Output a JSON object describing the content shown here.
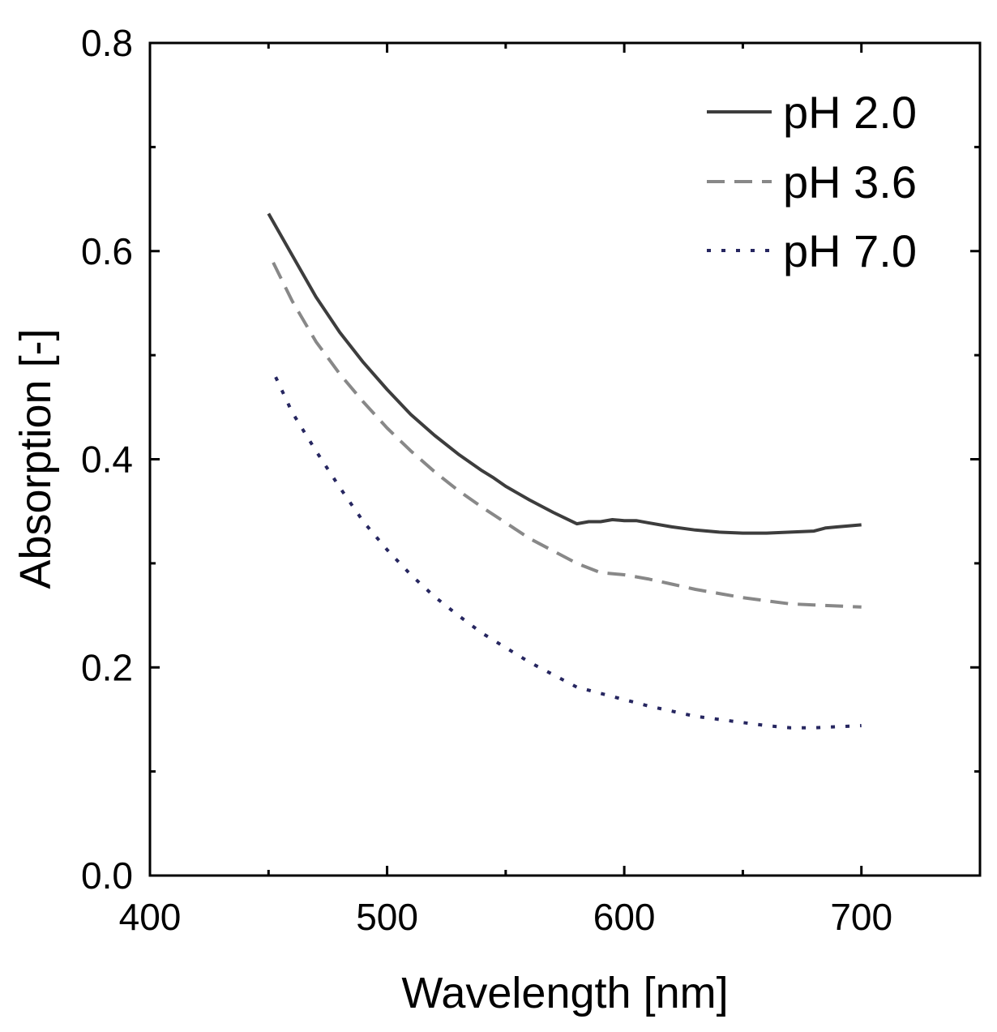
{
  "chart_data": {
    "type": "line",
    "title": "",
    "xlabel": "Wavelength [nm]",
    "ylabel": "Absorption [-]",
    "xlim": [
      400,
      750
    ],
    "ylim": [
      0.0,
      0.8
    ],
    "xticks": [
      400,
      500,
      600,
      700
    ],
    "xtick_labels": [
      "400",
      "500",
      "600",
      "700"
    ],
    "xminor": [
      450,
      550,
      650
    ],
    "yticks": [
      0.0,
      0.2,
      0.4,
      0.6,
      0.8
    ],
    "ytick_labels": [
      "0.0",
      "0.2",
      "0.4",
      "0.6",
      "0.8"
    ],
    "yminor": [
      0.1,
      0.3,
      0.5,
      0.7
    ],
    "grid": false,
    "legend_position": "top-right",
    "series": [
      {
        "name": "pH 2.0",
        "color": "#3d3d3d",
        "style": "solid",
        "x": [
          450,
          460,
          470,
          480,
          490,
          500,
          510,
          520,
          530,
          540,
          545,
          550,
          560,
          570,
          580,
          585,
          590,
          595,
          600,
          605,
          610,
          620,
          630,
          640,
          650,
          660,
          670,
          680,
          685,
          690,
          700
        ],
        "y": [
          0.636,
          0.596,
          0.556,
          0.522,
          0.493,
          0.467,
          0.443,
          0.423,
          0.405,
          0.389,
          0.382,
          0.374,
          0.361,
          0.349,
          0.338,
          0.34,
          0.34,
          0.342,
          0.341,
          0.341,
          0.339,
          0.335,
          0.332,
          0.33,
          0.329,
          0.329,
          0.33,
          0.331,
          0.334,
          0.335,
          0.337
        ]
      },
      {
        "name": "pH 3.6",
        "color": "#888888",
        "style": "dashed",
        "x": [
          452,
          460,
          470,
          480,
          490,
          500,
          510,
          520,
          530,
          540,
          550,
          560,
          570,
          580,
          590,
          600,
          610,
          620,
          630,
          640,
          650,
          660,
          670,
          680,
          690,
          700
        ],
        "y": [
          0.589,
          0.552,
          0.513,
          0.482,
          0.455,
          0.43,
          0.408,
          0.388,
          0.37,
          0.354,
          0.339,
          0.324,
          0.312,
          0.3,
          0.291,
          0.289,
          0.285,
          0.28,
          0.275,
          0.271,
          0.267,
          0.264,
          0.261,
          0.26,
          0.259,
          0.258
        ]
      },
      {
        "name": "pH 7.0",
        "color": "#262660",
        "style": "dotted",
        "x": [
          453,
          460,
          470,
          480,
          490,
          500,
          510,
          520,
          530,
          540,
          550,
          560,
          570,
          580,
          590,
          600,
          610,
          620,
          630,
          640,
          650,
          660,
          670,
          680,
          690,
          700
        ],
        "y": [
          0.479,
          0.445,
          0.408,
          0.373,
          0.34,
          0.313,
          0.289,
          0.268,
          0.25,
          0.233,
          0.219,
          0.205,
          0.193,
          0.181,
          0.175,
          0.169,
          0.163,
          0.158,
          0.153,
          0.15,
          0.147,
          0.144,
          0.142,
          0.142,
          0.143,
          0.144
        ]
      }
    ]
  }
}
